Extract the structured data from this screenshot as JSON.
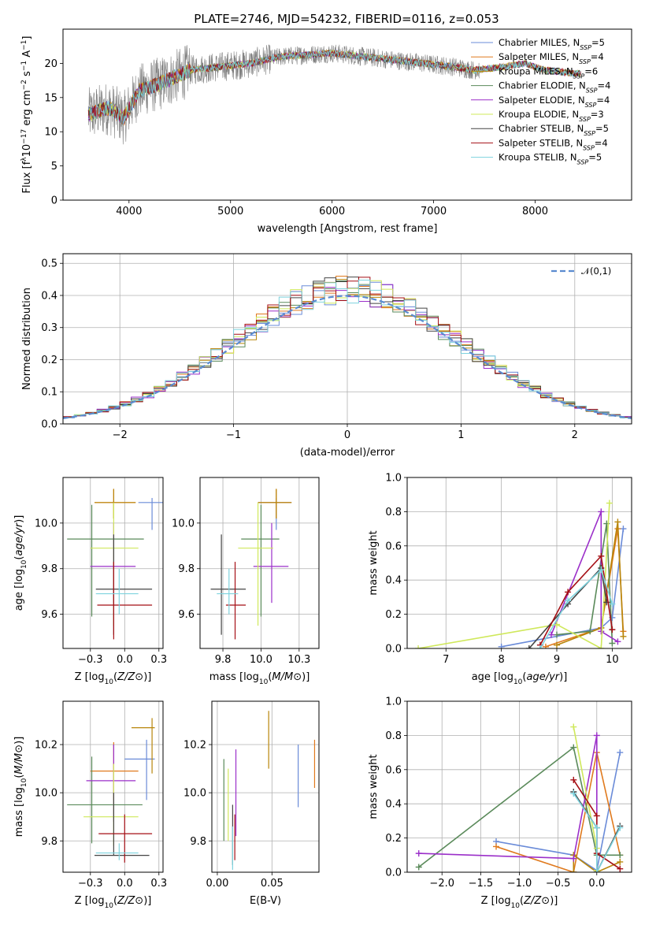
{
  "title": "PLATE=2746, MJD=54232, FIBERID=0116, z=0.053",
  "models": [
    {
      "name": "Chabrier MILES, N$_{SSP}$=5",
      "legend": [
        "Chabrier MILES, N",
        "SSP",
        "=5"
      ],
      "color": "#6a8bd8"
    },
    {
      "name": "Salpeter MILES, N$_{SSP}$=4",
      "legend": [
        "Salpeter MILES, N",
        "SSP",
        "=4"
      ],
      "color": "#e07a1e"
    },
    {
      "name": "Kroupa MILES, N$_{SSP}$=6",
      "legend": [
        "Kroupa MILES, N",
        "SSP",
        "=6"
      ],
      "color": "#b8860b"
    },
    {
      "name": "Chabrier ELODIE, N$_{SSP}$=4",
      "legend": [
        "Chabrier ELODIE, N",
        "SSP",
        "=4"
      ],
      "color": "#5a8a5a"
    },
    {
      "name": "Salpeter ELODIE, N$_{SSP}$=4",
      "legend": [
        "Salpeter ELODIE, N",
        "SSP",
        "=4"
      ],
      "color": "#9b2fc9"
    },
    {
      "name": "Kroupa ELODIE, N$_{SSP}$=3",
      "legend": [
        "Kroupa ELODIE, N",
        "SSP",
        "=3"
      ],
      "color": "#cfe85a"
    },
    {
      "name": "Chabrier STELIB, N$_{SSP}$=5",
      "legend": [
        "Chabrier STELIB, N",
        "SSP",
        "=5"
      ],
      "color": "#444444"
    },
    {
      "name": "Salpeter STELIB, N$_{SSP}$=4",
      "legend": [
        "Salpeter STELIB, N",
        "SSP",
        "=4"
      ],
      "color": "#a50f15"
    },
    {
      "name": "Kroupa STELIB, N$_{SSP}$=5",
      "legend": [
        "Kroupa STELIB, N",
        "SSP",
        "=5"
      ],
      "color": "#7ed3de"
    }
  ],
  "chart_data": [
    {
      "id": "spectrum",
      "type": "line",
      "xlabel": "wavelength [Angstrom, rest frame]",
      "ylabel": [
        "Flux [f",
        "λ",
        "10",
        "−17",
        " erg cm",
        "−2",
        " s",
        "−1",
        " A",
        "−1",
        "]"
      ],
      "xlim": [
        3350,
        8950
      ],
      "ylim": [
        0,
        25
      ],
      "xticks": [
        4000,
        5000,
        6000,
        7000,
        8000
      ],
      "yticks": [
        0,
        5,
        10,
        15,
        20
      ],
      "grid": false,
      "legend_position": "top-right",
      "data_color": "#808080",
      "continuum": [
        [
          3600,
          12.5
        ],
        [
          3800,
          13.5
        ],
        [
          3950,
          12
        ],
        [
          4100,
          16
        ],
        [
          4300,
          17
        ],
        [
          4600,
          19
        ],
        [
          4900,
          19.5
        ],
        [
          5200,
          20
        ],
        [
          5500,
          21
        ],
        [
          5800,
          21.3
        ],
        [
          6000,
          21.5
        ],
        [
          6300,
          21
        ],
        [
          6600,
          20.5
        ],
        [
          6900,
          20
        ],
        [
          7200,
          19.5
        ],
        [
          7400,
          19
        ],
        [
          7700,
          19.5
        ],
        [
          7900,
          20
        ],
        [
          8100,
          19
        ],
        [
          8400,
          18.5
        ],
        [
          8900,
          18.3
        ]
      ],
      "data_range": [
        3600,
        7450
      ],
      "model_range": [
        3600,
        8450
      ]
    },
    {
      "id": "residuals",
      "type": "histogram",
      "xlabel": "(data-model)/error",
      "ylabel": "Normed distribution",
      "xlim": [
        -2.5,
        2.5
      ],
      "ylim": [
        0,
        0.53
      ],
      "xticks": [
        -2,
        -1,
        0,
        1,
        2
      ],
      "yticks": [
        0,
        0.1,
        0.2,
        0.3,
        0.4,
        0.5
      ],
      "grid": true,
      "legend_position": "top-right",
      "reference": {
        "label": "𝒩(0,1)",
        "color": "#5b8bd0"
      },
      "bins": [
        -2.5,
        -2.4,
        -2.3,
        -2.2,
        -2.1,
        -2.0,
        -1.9,
        -1.8,
        -1.7,
        -1.6,
        -1.5,
        -1.4,
        -1.3,
        -1.2,
        -1.1,
        -1.0,
        -0.9,
        -0.8,
        -0.7,
        -0.6,
        -0.5,
        -0.4,
        -0.3,
        -0.2,
        -0.1,
        0.0,
        0.1,
        0.2,
        0.3,
        0.4,
        0.5,
        0.6,
        0.7,
        0.8,
        0.9,
        1.0,
        1.1,
        1.2,
        1.3,
        1.4,
        1.5,
        1.6,
        1.7,
        1.8,
        1.9,
        2.0,
        2.1,
        2.2,
        2.3,
        2.4
      ]
    },
    {
      "id": "age-vs-Z",
      "type": "errorbar",
      "xlabel": "Z [log10(Z/Z⊙)]",
      "ylabel": "age  [log10(age/yr)]",
      "xlim": [
        -0.45,
        0.28
      ],
      "ylim": [
        9.45,
        10.2
      ],
      "xticks": [
        -0.25,
        0.0,
        0.25
      ],
      "yticks": [
        9.6,
        9.8,
        10.0
      ],
      "grid": true,
      "points": [
        {
          "x": 0.2,
          "y": 10.09,
          "xe": [
            0.1,
            0.3
          ],
          "ye": [
            9.97,
            10.11
          ]
        },
        {
          "x": -0.08,
          "y": 10.09,
          "xe": [
            -0.22,
            0.08
          ],
          "ye": [
            10.02,
            10.15
          ]
        },
        {
          "x": -0.08,
          "y": 10.09,
          "xe": [
            -0.22,
            0.08
          ],
          "ye": [
            10.02,
            10.15
          ]
        },
        {
          "x": -0.24,
          "y": 9.93,
          "xe": [
            -0.42,
            0.14
          ],
          "ye": [
            9.59,
            10.08
          ]
        },
        {
          "x": -0.08,
          "y": 9.81,
          "xe": [
            -0.25,
            0.08
          ],
          "ye": [
            9.65,
            10.0
          ]
        },
        {
          "x": -0.08,
          "y": 9.89,
          "xe": [
            -0.25,
            0.1
          ],
          "ye": [
            9.55,
            10.09
          ]
        },
        {
          "x": -0.08,
          "y": 9.71,
          "xe": [
            -0.21,
            0.2
          ],
          "ye": [
            9.51,
            9.95
          ]
        },
        {
          "x": -0.08,
          "y": 9.64,
          "xe": [
            -0.2,
            0.2
          ],
          "ye": [
            9.49,
            9.83
          ]
        },
        {
          "x": -0.04,
          "y": 9.69,
          "xe": [
            -0.21,
            0.1
          ],
          "ye": [
            9.6,
            9.8
          ]
        }
      ]
    },
    {
      "id": "age-vs-mass",
      "type": "errorbar",
      "xlabel": "mass [log10(M/M⊙)]",
      "ylabel": "",
      "xlim": [
        9.6,
        10.38
      ],
      "ylim": [
        9.45,
        10.2
      ],
      "xticks": [
        9.75,
        10.0,
        10.25
      ],
      "yticks": [
        9.6,
        9.8,
        10.0
      ],
      "grid": true,
      "points": [
        {
          "x": 10.1,
          "y": 10.09,
          "xe": [
            9.98,
            10.2
          ],
          "ye": [
            9.97,
            10.11
          ]
        },
        {
          "x": 10.1,
          "y": 10.09,
          "xe": [
            9.98,
            10.2
          ],
          "ye": [
            10.02,
            10.15
          ]
        },
        {
          "x": 10.1,
          "y": 10.09,
          "xe": [
            9.98,
            10.2
          ],
          "ye": [
            10.02,
            10.15
          ]
        },
        {
          "x": 10.0,
          "y": 9.93,
          "xe": [
            9.87,
            10.12
          ],
          "ye": [
            9.59,
            10.08
          ]
        },
        {
          "x": 10.07,
          "y": 9.81,
          "xe": [
            9.95,
            10.18
          ],
          "ye": [
            9.65,
            10.0
          ]
        },
        {
          "x": 9.98,
          "y": 9.89,
          "xe": [
            9.85,
            10.08
          ],
          "ye": [
            9.55,
            10.09
          ]
        },
        {
          "x": 9.74,
          "y": 9.71,
          "xe": [
            9.67,
            9.9
          ],
          "ye": [
            9.51,
            9.95
          ]
        },
        {
          "x": 9.83,
          "y": 9.64,
          "xe": [
            9.77,
            9.9
          ],
          "ye": [
            9.49,
            9.83
          ]
        },
        {
          "x": 9.79,
          "y": 9.69,
          "xe": [
            9.71,
            9.85
          ],
          "ye": [
            9.6,
            9.8
          ]
        }
      ]
    },
    {
      "id": "massweight-vs-age",
      "type": "line",
      "xlabel": "age  [log10(age/yr)]",
      "ylabel": "mass weight",
      "xlim": [
        6.3,
        10.35
      ],
      "ylim": [
        0,
        1
      ],
      "xticks": [
        7,
        8,
        9,
        10
      ],
      "yticks": [
        0,
        0.2,
        0.4,
        0.6,
        0.8,
        1.0
      ],
      "grid": true,
      "series": [
        {
          "x": [
            8.0,
            9.8,
            10.0,
            10.2
          ],
          "y": [
            0.01,
            0.12,
            0.18,
            0.7
          ]
        },
        {
          "x": [
            8.8,
            9.8,
            10.1,
            10.2
          ],
          "y": [
            0.01,
            0.12,
            0.7,
            0.1
          ]
        },
        {
          "x": [
            9.0,
            9.8,
            10.1,
            10.2
          ],
          "y": [
            0.02,
            0.12,
            0.74,
            0.07
          ]
        },
        {
          "x": [
            9.0,
            9.6,
            9.9,
            10.0
          ],
          "y": [
            0.08,
            0.1,
            0.73,
            0.03
          ]
        },
        {
          "x": [
            8.9,
            9.8,
            9.8,
            10.1
          ],
          "y": [
            0.08,
            0.8,
            0.1,
            0.04
          ]
        },
        {
          "x": [
            6.5,
            9.0,
            9.8,
            9.95
          ],
          "y": [
            0.0,
            0.14,
            0.0,
            0.85
          ]
        },
        {
          "x": [
            8.5,
            9.2,
            9.8,
            9.9
          ],
          "y": [
            0.0,
            0.26,
            0.47,
            0.27
          ]
        },
        {
          "x": [
            8.7,
            9.2,
            9.8,
            10.0
          ],
          "y": [
            0.02,
            0.33,
            0.54,
            0.11
          ]
        },
        {
          "x": [
            8.7,
            9.2,
            9.8,
            10.0
          ],
          "y": [
            0.0,
            0.28,
            0.46,
            0.26
          ]
        }
      ]
    },
    {
      "id": "mass-vs-Z",
      "type": "errorbar",
      "xlabel": "Z [log10(Z/Z⊙)]",
      "ylabel": "mass [log10(M/M⊙)]",
      "xlim": [
        -0.45,
        0.28
      ],
      "ylim": [
        9.67,
        10.38
      ],
      "xticks": [
        -0.25,
        0.0,
        0.25
      ],
      "yticks": [
        9.8,
        10.0,
        10.2
      ],
      "grid": true,
      "points": [
        {
          "x": 0.16,
          "y": 10.14,
          "xe": [
            0.0,
            0.22
          ],
          "ye": [
            9.97,
            10.22
          ]
        },
        {
          "x": -0.08,
          "y": 10.09,
          "xe": [
            -0.25,
            0.1
          ],
          "ye": [
            9.97,
            10.21
          ]
        },
        {
          "x": 0.2,
          "y": 10.27,
          "xe": [
            0.05,
            0.22
          ],
          "ye": [
            10.08,
            10.31
          ]
        },
        {
          "x": -0.24,
          "y": 9.95,
          "xe": [
            -0.42,
            0.13
          ],
          "ye": [
            9.79,
            10.15
          ]
        },
        {
          "x": -0.08,
          "y": 10.05,
          "xe": [
            -0.28,
            0.08
          ],
          "ye": [
            9.88,
            10.2
          ]
        },
        {
          "x": -0.08,
          "y": 9.9,
          "xe": [
            -0.3,
            0.1
          ],
          "ye": [
            9.78,
            10.12
          ]
        },
        {
          "x": -0.08,
          "y": 9.74,
          "xe": [
            -0.22,
            0.18
          ],
          "ye": [
            9.74,
            10.0
          ]
        },
        {
          "x": 0.0,
          "y": 9.83,
          "xe": [
            -0.19,
            0.2
          ],
          "ye": [
            9.71,
            9.91
          ]
        },
        {
          "x": -0.04,
          "y": 9.75,
          "xe": [
            -0.21,
            0.1
          ],
          "ye": [
            9.72,
            9.79
          ]
        }
      ]
    },
    {
      "id": "mass-vs-ebv",
      "type": "errorbar",
      "xlabel": "E(B-V)",
      "ylabel": "",
      "xlim": [
        -0.005,
        0.093
      ],
      "ylim": [
        9.67,
        10.38
      ],
      "xticks": [
        0.0,
        0.05
      ],
      "yticks": [
        9.8,
        10.0,
        10.2
      ],
      "grid": true,
      "points": [
        {
          "x": 0.074,
          "y": 10.09,
          "xe": [
            0.074,
            0.074
          ],
          "ye": [
            9.94,
            10.2
          ]
        },
        {
          "x": 0.089,
          "y": 10.1,
          "xe": [
            0.089,
            0.089
          ],
          "ye": [
            10.02,
            10.22
          ]
        },
        {
          "x": 0.047,
          "y": 10.2,
          "xe": [
            0.047,
            0.047
          ],
          "ye": [
            10.1,
            10.34
          ]
        },
        {
          "x": 0.006,
          "y": 9.95,
          "xe": [
            0.006,
            0.006
          ],
          "ye": [
            9.8,
            10.14
          ]
        },
        {
          "x": 0.017,
          "y": 10.0,
          "xe": [
            0.017,
            0.017
          ],
          "ye": [
            9.82,
            10.18
          ]
        },
        {
          "x": 0.01,
          "y": 9.95,
          "xe": [
            0.01,
            0.01
          ],
          "ye": [
            9.8,
            10.1
          ]
        },
        {
          "x": 0.014,
          "y": 9.8,
          "xe": [
            0.014,
            0.014
          ],
          "ye": [
            9.7,
            9.95
          ]
        },
        {
          "x": 0.016,
          "y": 9.82,
          "xe": [
            0.016,
            0.016
          ],
          "ye": [
            9.72,
            9.91
          ]
        },
        {
          "x": 0.014,
          "y": 9.78,
          "xe": [
            0.014,
            0.014
          ],
          "ye": [
            9.68,
            9.86
          ]
        }
      ]
    },
    {
      "id": "massweight-vs-Z",
      "type": "line",
      "xlabel": "Z [log10(Z/Z⊙)]",
      "ylabel": "mass weight",
      "xlim": [
        -2.45,
        0.45
      ],
      "ylim": [
        0,
        1
      ],
      "xticks": [
        -2.0,
        -1.5,
        -1.0,
        -0.5,
        0.0
      ],
      "yticks": [
        0,
        0.2,
        0.4,
        0.6,
        0.8,
        1.0
      ],
      "grid": true,
      "series": [
        {
          "x": [
            -1.3,
            -0.3,
            0.0,
            0.3
          ],
          "y": [
            0.18,
            0.1,
            0.01,
            0.7
          ]
        },
        {
          "x": [
            -1.3,
            -0.3,
            0.0,
            0.3
          ],
          "y": [
            0.15,
            0.0,
            0.7,
            0.1
          ]
        },
        {
          "x": [
            -0.3,
            -0.3,
            0.0,
            0.3
          ],
          "y": [
            0.0,
            0.1,
            0.0,
            0.06
          ]
        },
        {
          "x": [
            -2.3,
            -0.3,
            0.0,
            0.3
          ],
          "y": [
            0.03,
            0.73,
            0.1,
            0.1
          ]
        },
        {
          "x": [
            -2.3,
            -0.3,
            0.0,
            0.0
          ],
          "y": [
            0.11,
            0.08,
            0.8,
            0.01
          ]
        },
        {
          "x": [
            -0.3,
            0.0,
            0.0
          ],
          "y": [
            0.85,
            0.14,
            0.01
          ]
        },
        {
          "x": [
            -0.3,
            0.0,
            0.0,
            0.3
          ],
          "y": [
            0.47,
            0.26,
            0.0,
            0.27
          ]
        },
        {
          "x": [
            -0.3,
            0.0,
            0.0,
            0.3
          ],
          "y": [
            0.54,
            0.33,
            0.11,
            0.02
          ]
        },
        {
          "x": [
            -0.3,
            0.0,
            0.0,
            0.3
          ],
          "y": [
            0.46,
            0.26,
            0.0,
            0.26
          ]
        }
      ]
    }
  ]
}
